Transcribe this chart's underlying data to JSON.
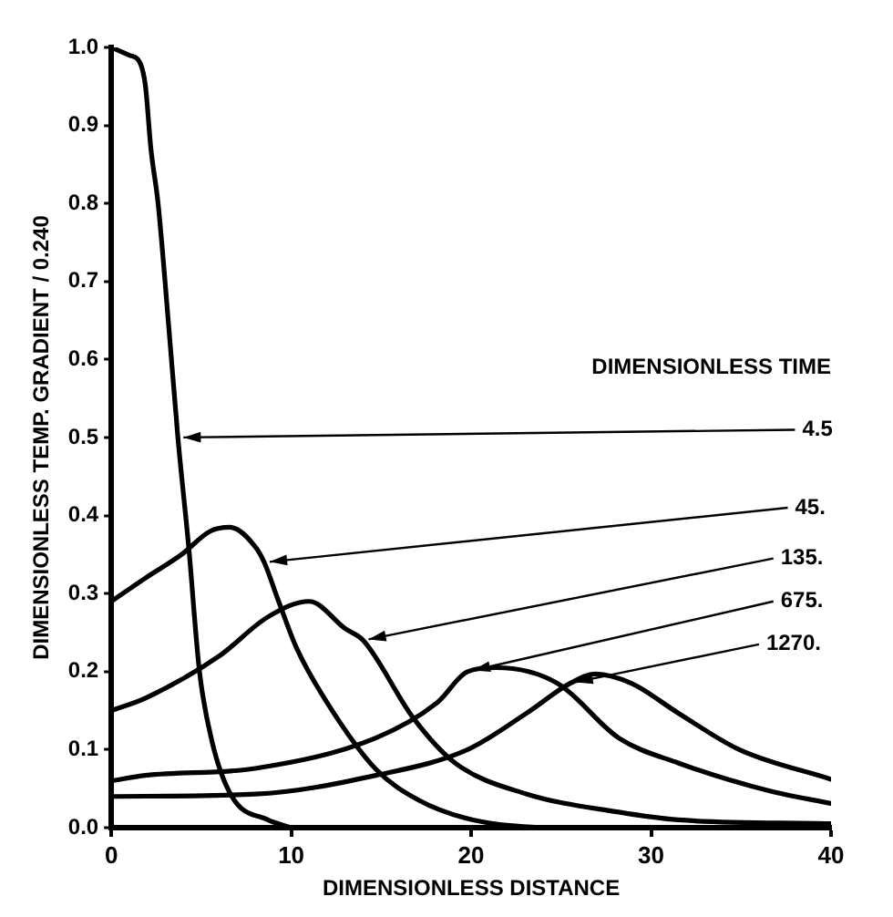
{
  "chart_data": {
    "type": "line",
    "xlabel": "DIMENSIONLESS DISTANCE",
    "ylabel": "DIMENSIONLESS TEMP. GRADIENT / 0.240",
    "legend_title": "DIMENSIONLESS TIME",
    "xlim": [
      0,
      40
    ],
    "ylim": [
      0,
      1.0
    ],
    "xticks": [
      0,
      10,
      20,
      30,
      40
    ],
    "yticks": [
      {
        "value": 0,
        "label": "0.0"
      },
      {
        "value": 0.1,
        "label": "0.1"
      },
      {
        "value": 0.2,
        "label": "0.2"
      },
      {
        "value": 0.3,
        "label": "0.3"
      },
      {
        "value": 0.4,
        "label": "0.4"
      },
      {
        "value": 0.5,
        "label": "0.5"
      },
      {
        "value": 0.6,
        "label": "0.6"
      },
      {
        "value": 0.7,
        "label": "0.7"
      },
      {
        "value": 0.8,
        "label": "0.8"
      },
      {
        "value": 0.9,
        "label": "0.9"
      },
      {
        "value": 1.0,
        "label": "1.0"
      }
    ],
    "grid": false,
    "legend": false,
    "marker": "none",
    "line_style": "solid",
    "series": [
      {
        "name": "4.5",
        "color": "#000000",
        "x": [
          0,
          1.0,
          1.6,
          1.9,
          2.2,
          2.6,
          3.2,
          3.7,
          4.3,
          4.9,
          5.6,
          6.7,
          8.7,
          10
        ],
        "values": [
          1.0,
          0.99,
          0.98,
          0.95,
          0.87,
          0.8,
          0.64,
          0.5,
          0.36,
          0.2,
          0.11,
          0.04,
          0.01,
          0
        ]
      },
      {
        "name": "45.",
        "color": "#000000",
        "x": [
          0,
          1.9,
          3.9,
          5.5,
          6.6,
          8.0,
          8.5,
          9.3,
          10.3,
          12.0,
          14.7,
          17.1,
          20.1,
          25,
          40
        ],
        "values": [
          0.29,
          0.32,
          0.35,
          0.38,
          0.385,
          0.36,
          0.34,
          0.29,
          0.23,
          0.16,
          0.075,
          0.035,
          0.01,
          0,
          0
        ]
      },
      {
        "name": "135.",
        "color": "#000000",
        "x": [
          0,
          1.9,
          6.0,
          8.7,
          11.0,
          13.0,
          14.0,
          16.8,
          19.1,
          23.1,
          28.2,
          31.5,
          40
        ],
        "values": [
          0.15,
          0.166,
          0.22,
          0.27,
          0.29,
          0.255,
          0.24,
          0.14,
          0.083,
          0.043,
          0.02,
          0.01,
          0.005
        ]
      },
      {
        "name": "675.",
        "color": "#000000",
        "x": [
          0,
          1.9,
          8,
          14.7,
          18.1,
          19.8,
          21.4,
          24.8,
          28.2,
          31.5,
          36.6,
          40
        ],
        "values": [
          0.06,
          0.067,
          0.076,
          0.115,
          0.16,
          0.2,
          0.205,
          0.185,
          0.115,
          0.083,
          0.047,
          0.031
        ]
      },
      {
        "name": "1270.",
        "color": "#000000",
        "x": [
          0,
          8,
          14.7,
          19.8,
          23.1,
          25.5,
          26.9,
          28.9,
          31.5,
          34.9,
          40
        ],
        "values": [
          0.04,
          0.043,
          0.067,
          0.1,
          0.147,
          0.185,
          0.197,
          0.185,
          0.147,
          0.1,
          0.062
        ]
      }
    ]
  }
}
